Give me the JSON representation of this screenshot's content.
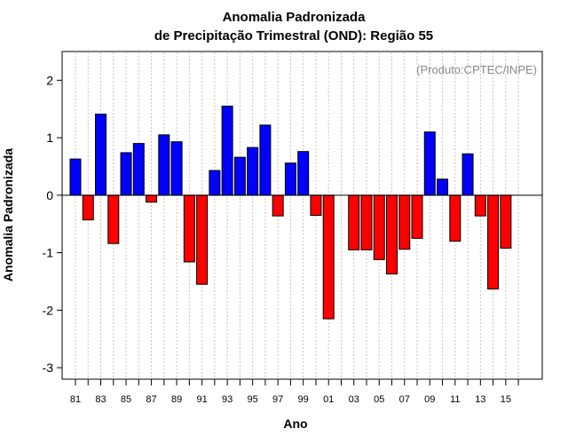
{
  "chart_data": {
    "type": "bar",
    "title": "Anomalia Padronizada",
    "subtitle": "de Precipitação Trimestral (OND): Região 55",
    "xlabel": "Ano",
    "ylabel": "Anomalia Padronizada",
    "credit": "(Produto:CPTEC/INPE)",
    "ylim": [
      -3.2,
      2.5
    ],
    "yticks": [
      -3,
      -2,
      -1,
      0,
      1,
      2
    ],
    "ytick_labels": [
      "-3",
      "-2",
      "-1",
      "0",
      "1",
      "2"
    ],
    "positive_color": "#0000ff",
    "negative_color": "#ff0000",
    "categories": [
      "81",
      "82",
      "83",
      "84",
      "85",
      "86",
      "87",
      "88",
      "89",
      "90",
      "91",
      "92",
      "93",
      "94",
      "95",
      "96",
      "97",
      "98",
      "99",
      "00",
      "01",
      "02",
      "03",
      "04",
      "05",
      "06",
      "07",
      "08",
      "09",
      "10",
      "11",
      "12",
      "13",
      "14",
      "15",
      "16"
    ],
    "values": [
      0.63,
      -0.43,
      1.41,
      -0.84,
      0.74,
      0.9,
      -0.12,
      1.05,
      0.93,
      -1.16,
      -1.55,
      0.43,
      1.55,
      0.66,
      0.83,
      1.22,
      -0.36,
      0.56,
      0.76,
      -0.35,
      -2.15,
      null,
      -0.95,
      -0.95,
      -1.12,
      -1.37,
      -0.94,
      -0.75,
      1.1,
      0.28,
      -0.8,
      0.72,
      -0.36,
      -1.63,
      -0.92,
      null
    ],
    "xtick_labels": [
      "81",
      "83",
      "85",
      "87",
      "89",
      "91",
      "93",
      "95",
      "97",
      "99",
      "01",
      "03",
      "05",
      "07",
      "09",
      "11",
      "13",
      "15"
    ]
  }
}
